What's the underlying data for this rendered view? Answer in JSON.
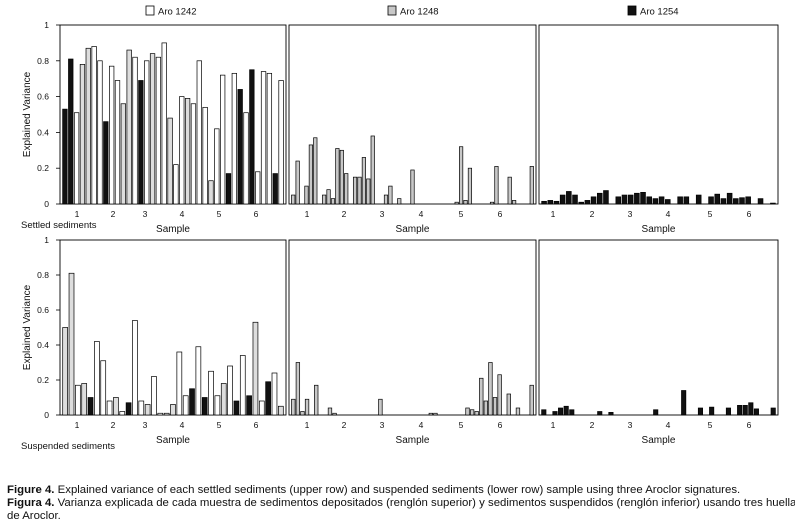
{
  "chart_data": {
    "type": "bar",
    "ylabel": "Explained Variance",
    "xlabel": "Sample",
    "ylim": [
      0,
      1
    ],
    "yticks": [
      "0",
      "0.2",
      "0.4",
      "0.6",
      "0.8",
      "1"
    ],
    "xticks": [
      "1",
      "2",
      "3",
      "4",
      "5",
      "6"
    ],
    "legend": [
      {
        "name": "Aro 1242",
        "color": "#ffffff"
      },
      {
        "name": "Aro 1248",
        "color": "#c8c8c8"
      },
      {
        "name": "Aro 1254",
        "color": "#111111"
      }
    ],
    "rows": [
      {
        "label": "Settled sediments",
        "panels": [
          {
            "series": "Aro 1242",
            "values": [
              0.53,
              0.81,
              0.51,
              0.78,
              0.87,
              0.88,
              0.8,
              0.46,
              0.77,
              0.69,
              0.56,
              0.86,
              0.82,
              0.69,
              0.8,
              0.84,
              0.82,
              0.9,
              0.48,
              0.22,
              0.6,
              0.59,
              0.56,
              0.8,
              0.54,
              0.13,
              0.42,
              0.72,
              0.17,
              0.73,
              0.64,
              0.51,
              0.75,
              0.18,
              0.74,
              0.73,
              0.17,
              0.69
            ],
            "shades": [
              "#111",
              "#111",
              "#fff",
              "#ddd",
              "#ddd",
              "#fff",
              "#fff",
              "#111",
              "#fff",
              "#fff",
              "#ddd",
              "#ddd",
              "#fff",
              "#111",
              "#fff",
              "#ddd",
              "#fff",
              "#fff",
              "#ddd",
              "#fff",
              "#fff",
              "#ddd",
              "#fff",
              "#fff",
              "#fff",
              "#ddd",
              "#fff",
              "#fff",
              "#111",
              "#fff",
              "#111",
              "#fff",
              "#111",
              "#fff",
              "#fff",
              "#fff",
              "#111",
              "#fff"
            ]
          },
          {
            "series": "Aro 1248",
            "values": [
              0.05,
              0.24,
              0.1,
              0.33,
              0.37,
              0.05,
              0.08,
              0.03,
              0.31,
              0.3,
              0.17,
              0.15,
              0.15,
              0.26,
              0.14,
              0.38,
              0.05,
              0.1,
              0.03,
              0.19,
              0.01,
              0.32,
              0.02,
              0.2,
              0.01,
              0.21,
              0.15,
              0.02,
              0.21
            ],
            "slots": [
              0,
              1,
              3,
              4,
              5,
              7,
              8,
              9,
              10,
              11,
              12,
              14,
              15,
              16,
              17,
              18,
              21,
              22,
              24,
              27,
              37,
              38,
              39,
              40,
              45,
              46,
              49,
              50,
              54
            ]
          },
          {
            "series": "Aro 1254",
            "values": [
              0.015,
              0.02,
              0.015,
              0.05,
              0.07,
              0.05,
              0.01,
              0.02,
              0.04,
              0.06,
              0.075,
              0.04,
              0.05,
              0.05,
              0.06,
              0.065,
              0.04,
              0.03,
              0.04,
              0.025,
              0.04,
              0.04,
              0.05,
              0.04,
              0.055,
              0.03,
              0.06,
              0.03,
              0.035,
              0.04,
              0.03,
              0.005
            ],
            "slots": [
              0,
              1,
              2,
              3,
              4,
              5,
              6,
              7,
              8,
              9,
              10,
              12,
              13,
              14,
              15,
              16,
              17,
              18,
              19,
              20,
              22,
              23,
              25,
              27,
              28,
              29,
              30,
              31,
              32,
              33,
              35,
              37
            ]
          }
        ]
      },
      {
        "label": "Suspended sediments",
        "panels": [
          {
            "series": "Aro 1242",
            "values": [
              0.5,
              0.81,
              0.17,
              0.18,
              0.1,
              0.42,
              0.31,
              0.08,
              0.1,
              0.02,
              0.07,
              0.54,
              0.08,
              0.06,
              0.22,
              0.01,
              0.01,
              0.06,
              0.36,
              0.11,
              0.15,
              0.39,
              0.1,
              0.25,
              0.11,
              0.18,
              0.28,
              0.08,
              0.34,
              0.11,
              0.53,
              0.08,
              0.19,
              0.24,
              0.05
            ],
            "shades": [
              "#ddd",
              "#ddd",
              "#fff",
              "#ddd",
              "#111",
              "#fff",
              "#fff",
              "#fff",
              "#ddd",
              "#fff",
              "#111",
              "#fff",
              "#fff",
              "#ddd",
              "#fff",
              "#fff",
              "#ddd",
              "#ddd",
              "#fff",
              "#fff",
              "#111",
              "#fff",
              "#111",
              "#fff",
              "#fff",
              "#ddd",
              "#fff",
              "#111",
              "#fff",
              "#111",
              "#ddd",
              "#fff",
              "#111",
              "#fff",
              "#ddd"
            ]
          },
          {
            "series": "Aro 1248",
            "values": [
              0.09,
              0.3,
              0.02,
              0.09,
              0.17,
              0.04,
              0.01,
              0.09,
              0.01,
              0.01,
              0.04,
              0.03,
              0.02,
              0.21,
              0.08,
              0.3,
              0.1,
              0.23,
              0.12,
              0.04,
              0.17
            ],
            "slots": [
              0,
              1,
              2,
              3,
              5,
              8,
              9,
              19,
              30,
              31,
              38,
              39,
              40,
              41,
              42,
              43,
              44,
              45,
              47,
              49,
              52
            ]
          },
          {
            "series": "Aro 1254",
            "values": [
              0.03,
              0.02,
              0.04,
              0.05,
              0.03,
              0.02,
              0.015,
              0.03,
              0.14,
              0.04,
              0.045,
              0.04,
              0.055,
              0.055,
              0.07,
              0.035,
              0.04
            ],
            "slots": [
              0,
              2,
              3,
              4,
              5,
              10,
              12,
              20,
              25,
              28,
              30,
              33,
              35,
              36,
              37,
              38,
              41
            ]
          }
        ]
      }
    ]
  },
  "caption": {
    "en_label": "Figure 4.",
    "en_text": " Explained variance of each settled sediments (upper row) and suspended sediments (lower row) sample using three Aroclor signatures.",
    "es_label": "Figura 4.",
    "es_text": " Varianza explicada de cada muestra de sedimentos depositados (renglón superior) y sedimentos suspendidos (renglón inferior) usando tres huellas",
    "es_text2": "de Aroclor."
  }
}
